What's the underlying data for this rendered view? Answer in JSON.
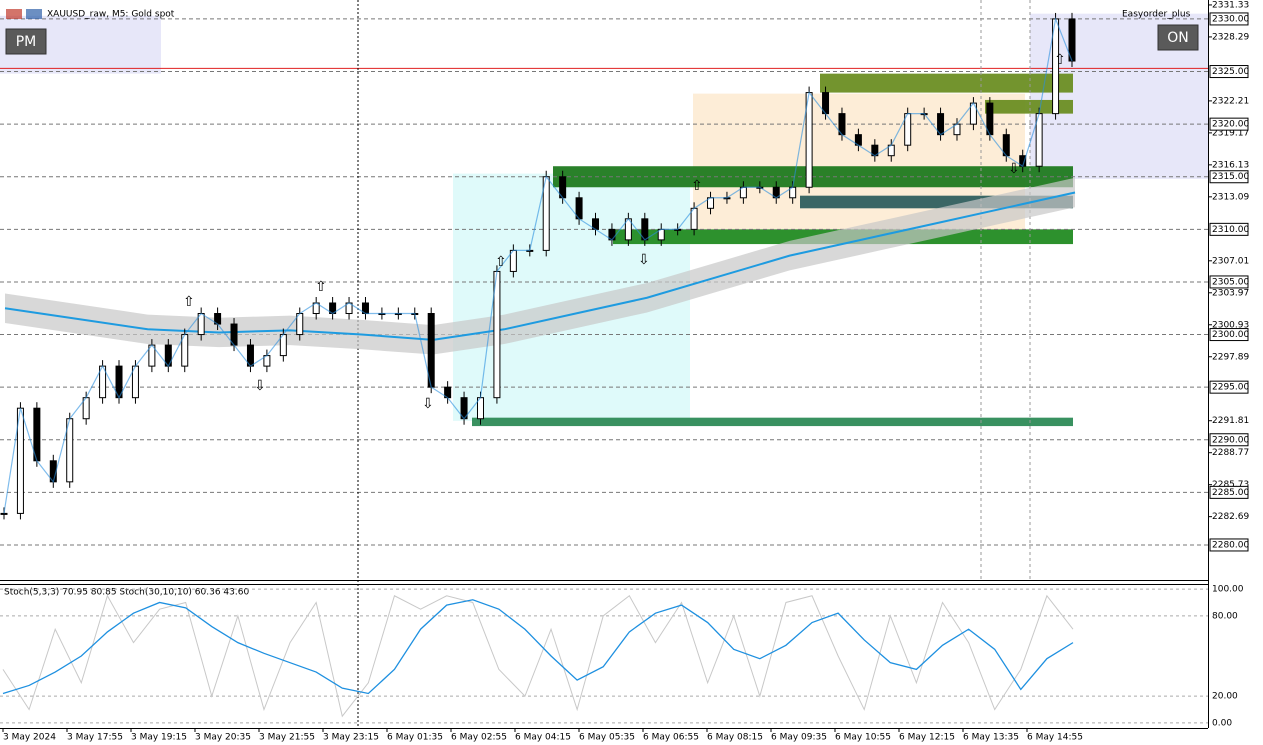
{
  "window": {
    "symbol": "XAUUSD_raw, M5:  Gold spot",
    "expert": "Easyorder_plus",
    "left_button": "PM",
    "right_button": "ON"
  },
  "price_pane": {
    "ylim": [
      2276.67,
      2331.8
    ],
    "ticks": [
      {
        "value": 2331.33,
        "label": "2331.33"
      },
      {
        "value": 2328.29,
        "label": "2328.29"
      },
      {
        "value": 2322.21,
        "label": "2322.21"
      },
      {
        "value": 2319.17,
        "label": "2319.17"
      },
      {
        "value": 2316.13,
        "label": "2316.13"
      },
      {
        "value": 2313.09,
        "label": "2313.09"
      },
      {
        "value": 2307.01,
        "label": "2307.01"
      },
      {
        "value": 2303.97,
        "label": "2303.97"
      },
      {
        "value": 2300.93,
        "label": "2300.93"
      },
      {
        "value": 2297.89,
        "label": "2297.89"
      },
      {
        "value": 2291.81,
        "label": "2291.81"
      },
      {
        "value": 2288.77,
        "label": "2288.77"
      },
      {
        "value": 2285.73,
        "label": "2285.73"
      },
      {
        "value": 2282.69,
        "label": "2282.69"
      }
    ],
    "levels": [
      {
        "value": 2330,
        "label": "2330.00"
      },
      {
        "value": 2325,
        "label": "2325.00"
      },
      {
        "value": 2320,
        "label": "2320.00"
      },
      {
        "value": 2315,
        "label": "2315.00"
      },
      {
        "value": 2310,
        "label": "2310.00"
      },
      {
        "value": 2305,
        "label": "2305.00"
      },
      {
        "value": 2300,
        "label": "2300.00"
      },
      {
        "value": 2295,
        "label": "2295.00"
      },
      {
        "value": 2290,
        "label": "2290.00"
      },
      {
        "value": 2285,
        "label": "2285.00"
      },
      {
        "value": 2280,
        "label": "2280.00"
      }
    ],
    "bid": 2325.3,
    "zones": [
      {
        "top": 2330.3,
        "bottom": 2324.8,
        "color": "#e4e4f8"
      },
      {
        "top": 2330.5,
        "bottom": 2314.8,
        "color": "#e4e4f8"
      },
      {
        "top": 2315.3,
        "bottom": 2291.8,
        "color": "#dcfafa"
      },
      {
        "top": 2322.9,
        "bottom": 2310.0,
        "color": "#fdebd3"
      },
      {
        "top": 2324.8,
        "bottom": 2323.0,
        "color": "#6b8e23"
      },
      {
        "top": 2322.3,
        "bottom": 2321.0,
        "color": "#6b8e23"
      },
      {
        "top": 2316.0,
        "bottom": 2314.0,
        "color": "#1f7a1f"
      },
      {
        "top": 2313.2,
        "bottom": 2312.0,
        "color": "#2f5f5f"
      },
      {
        "top": 2310.0,
        "bottom": 2308.6,
        "color": "#228b22"
      },
      {
        "top": 2292.1,
        "bottom": 2291.3,
        "color": "#2e8b57"
      }
    ],
    "closes": [
      2283,
      2293,
      2288,
      2286,
      2292,
      2294,
      2297,
      2294,
      2297,
      2299,
      2297,
      2300,
      2302,
      2301,
      2299,
      2297,
      2298,
      2300,
      2302,
      2303,
      2302,
      2303,
      2302,
      2302,
      2302,
      2302,
      2295,
      2294,
      2292,
      2294,
      2306,
      2308,
      2308,
      2315,
      2313,
      2311,
      2310,
      2309,
      2311,
      2309,
      2310,
      2310,
      2312,
      2313,
      2313,
      2314,
      2314,
      2313,
      2314,
      2323,
      2321,
      2319,
      2318,
      2317,
      2318,
      2321,
      2321,
      2319,
      2320,
      2322,
      2319,
      2317,
      2316,
      2321,
      2330,
      2326
    ],
    "ma": [
      2302.5,
      2301.5,
      2300.5,
      2300.2,
      2300.4,
      2300.0,
      2299.5,
      2300.5,
      2302.0,
      2303.5,
      2305.5,
      2307.5,
      2309.0,
      2310.5,
      2312.0,
      2313.5
    ]
  },
  "time_axis": [
    "3 May 2024",
    "3 May 17:55",
    "3 May 19:15",
    "3 May 20:35",
    "3 May 21:55",
    "3 May 23:15",
    "6 May 01:35",
    "6 May 02:55",
    "6 May 04:15",
    "6 May 05:35",
    "6 May 06:55",
    "6 May 08:15",
    "6 May 09:35",
    "6 May 10:55",
    "6 May 12:15",
    "6 May 13:35",
    "6 May 14:55"
  ],
  "stoch_pane": {
    "label": "Stoch(5,3,3) 70.95 80.85 Stoch(30,10,10) 60.36 43.60",
    "ylim": [
      -3.8,
      103.8
    ],
    "ticks": [
      {
        "value": 100,
        "label": "100.00"
      },
      {
        "value": 80,
        "label": "80.00"
      },
      {
        "value": 20,
        "label": "20.00"
      },
      {
        "value": 0,
        "label": "0.00"
      }
    ],
    "slow": [
      22,
      28,
      38,
      50,
      68,
      82,
      90,
      86,
      72,
      60,
      52,
      45,
      38,
      26,
      22,
      40,
      70,
      88,
      92,
      85,
      70,
      50,
      32,
      42,
      68,
      82,
      88,
      75,
      55,
      48,
      58,
      75,
      82,
      62,
      45,
      40,
      58,
      70,
      55,
      25,
      48,
      60
    ],
    "fast": [
      40,
      10,
      70,
      30,
      95,
      60,
      85,
      90,
      20,
      80,
      10,
      60,
      90,
      5,
      30,
      95,
      85,
      95,
      90,
      40,
      20,
      70,
      10,
      80,
      95,
      60,
      90,
      30,
      80,
      20,
      90,
      95,
      50,
      10,
      80,
      30,
      90,
      60,
      10,
      40,
      95,
      70
    ]
  }
}
